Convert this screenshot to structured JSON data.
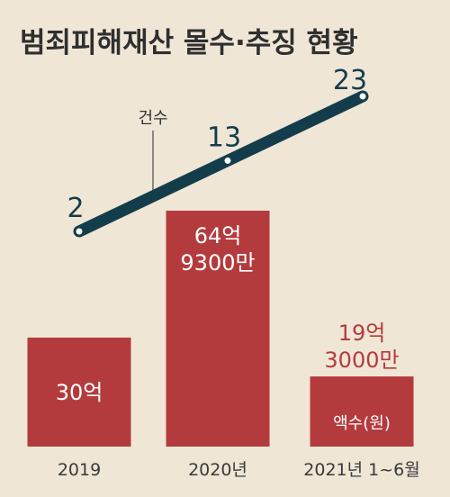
{
  "chart_data": {
    "type": "bar",
    "title": "범죄피해재산 몰수·추징 현황",
    "categories": [
      "2019",
      "2020년",
      "2021년 1~6월"
    ],
    "series": [
      {
        "name": "액수(원)",
        "values": [
          3000000000,
          6493000000,
          1930000000
        ],
        "labels": [
          [
            "30억"
          ],
          [
            "64억",
            "9300만"
          ],
          [
            "19억",
            "3000만"
          ]
        ],
        "color": "#b43b3d"
      },
      {
        "name": "건수",
        "type": "line",
        "values": [
          2,
          13,
          23
        ],
        "color": "#143d4c"
      }
    ],
    "ylim": [
      0,
      7000000000
    ],
    "grid": false,
    "colors": {
      "background": "#efe6d6",
      "bar": "#b43b3d",
      "line": "#143d4c",
      "text": "#333333"
    }
  }
}
